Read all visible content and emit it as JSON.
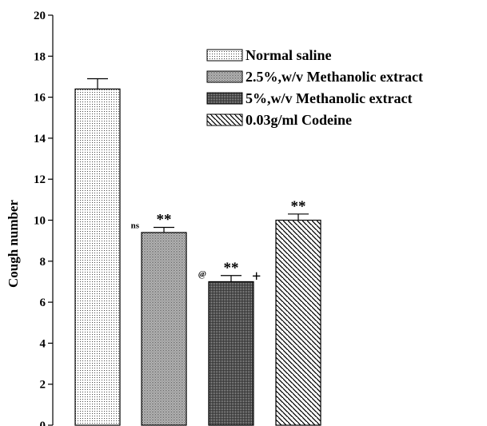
{
  "chart_data": {
    "type": "bar",
    "title": "",
    "xlabel": "",
    "ylabel": "Cough number",
    "ylim": [
      0,
      20
    ],
    "yticks": [
      0,
      2,
      4,
      6,
      8,
      10,
      12,
      14,
      16,
      18,
      20
    ],
    "grid": false,
    "legend_position": "top-right",
    "series": [
      {
        "name": "Normal saline",
        "value": 16.4,
        "error": 0.5,
        "pattern": "fine-dots",
        "fill": "#f2f2f2",
        "annotations": []
      },
      {
        "name": "2.5%,w/v Methanolic extract",
        "value": 9.4,
        "error": 0.25,
        "pattern": "medium-dots",
        "fill": "#bdbdbd",
        "annotations": [
          {
            "text": "ns",
            "position": "left"
          },
          {
            "text": "**",
            "position": "top"
          }
        ]
      },
      {
        "name": "5%,w/v Methanolic extract",
        "value": 7.0,
        "error": 0.3,
        "pattern": "dense-dots",
        "fill": "#6e6e6e",
        "annotations": [
          {
            "text": "@",
            "position": "left"
          },
          {
            "text": "**",
            "position": "top"
          },
          {
            "text": "+",
            "position": "right"
          }
        ]
      },
      {
        "name": "0.03g/ml Codeine",
        "value": 10.0,
        "error": 0.3,
        "pattern": "diagonal-hatch",
        "fill": "#ffffff",
        "annotations": [
          {
            "text": "**",
            "position": "top"
          }
        ]
      }
    ]
  }
}
